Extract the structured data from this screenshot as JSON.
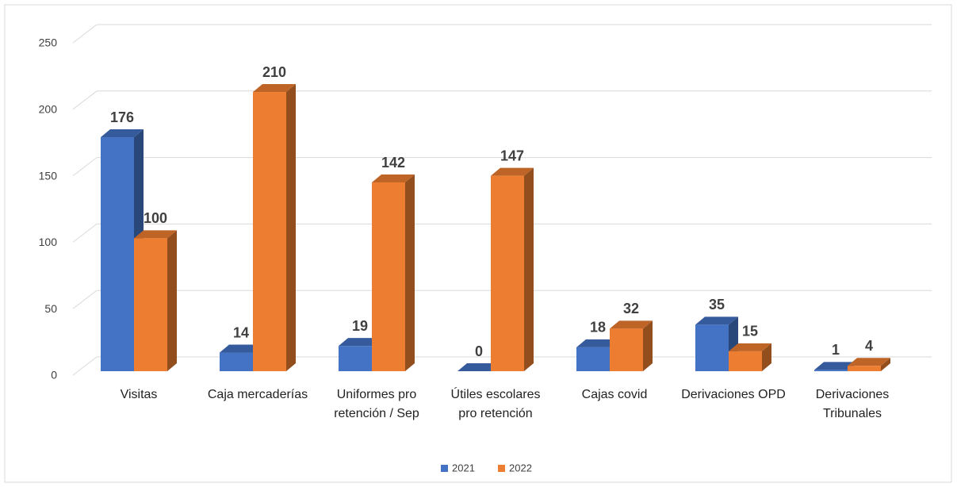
{
  "chart_data": {
    "type": "bar3d",
    "categories": [
      "Visitas",
      "Caja mercaderías",
      "Uniformes pro retención / Sep",
      "Útiles escolares pro retención",
      "Cajas covid",
      "Derivaciones OPD",
      "Derivaciones Tribunales"
    ],
    "series": [
      {
        "name": "2021",
        "color": "#4472c4",
        "values": [
          176,
          14,
          19,
          0,
          18,
          35,
          1
        ]
      },
      {
        "name": "2022",
        "color": "#ed7d31",
        "values": [
          100,
          210,
          142,
          147,
          32,
          15,
          4
        ]
      }
    ],
    "ylim": [
      0,
      250
    ],
    "yticks": [
      0,
      50,
      100,
      150,
      200,
      250
    ],
    "grid": true,
    "legend": "bottom"
  }
}
